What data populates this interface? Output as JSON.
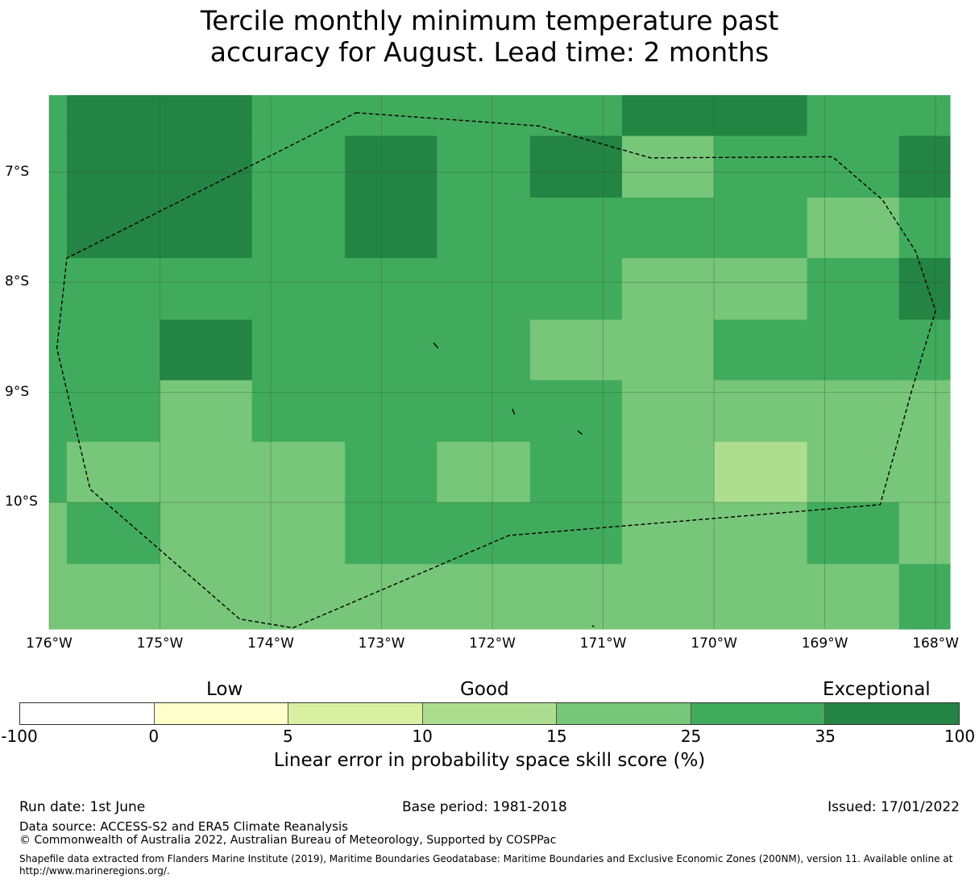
{
  "title": {
    "line1": "Tercile monthly minimum temperature past",
    "line2": "accuracy for August. Lead time: 2 months"
  },
  "map": {
    "lon_range": [
      -176,
      -167.87
    ],
    "lat_range": [
      -11.15,
      -6.3
    ],
    "lat_ticks": [
      {
        "value": -7,
        "label": "7°S"
      },
      {
        "value": -8,
        "label": "8°S"
      },
      {
        "value": -9,
        "label": "9°S"
      },
      {
        "value": -10,
        "label": "10°S"
      }
    ],
    "lon_ticks": [
      {
        "value": -176,
        "label": "176°W"
      },
      {
        "value": -175,
        "label": "175°W"
      },
      {
        "value": -174,
        "label": "174°W"
      },
      {
        "value": -173,
        "label": "173°W"
      },
      {
        "value": -172,
        "label": "172°W"
      },
      {
        "value": -171,
        "label": "171°W"
      },
      {
        "value": -170,
        "label": "170°W"
      },
      {
        "value": -169,
        "label": "169°W"
      },
      {
        "value": -168,
        "label": "168°W"
      }
    ],
    "grid_lon_edges": [
      -176,
      -175.84,
      -175.0,
      -174.17,
      -173.33,
      -172.5,
      -171.66,
      -170.83,
      -170.0,
      -169.16,
      -168.33,
      -167.87
    ],
    "grid_lat_edges": [
      -6.3,
      -6.67,
      -7.23,
      -7.78,
      -8.34,
      -8.89,
      -9.45,
      -10.0,
      -10.56,
      -11.15
    ],
    "cell_levels": [
      [
        5,
        6,
        6,
        5,
        5,
        5,
        5,
        6,
        6,
        5,
        5
      ],
      [
        5,
        6,
        6,
        5,
        6,
        5,
        6,
        4,
        5,
        5,
        6
      ],
      [
        5,
        6,
        6,
        5,
        6,
        5,
        5,
        5,
        5,
        4,
        5
      ],
      [
        5,
        5,
        5,
        5,
        5,
        5,
        5,
        4,
        4,
        5,
        6
      ],
      [
        5,
        5,
        6,
        5,
        5,
        5,
        4,
        4,
        5,
        5,
        5
      ],
      [
        5,
        5,
        4,
        5,
        5,
        5,
        5,
        4,
        4,
        4,
        4
      ],
      [
        5,
        4,
        4,
        4,
        5,
        4,
        5,
        4,
        3,
        4,
        4
      ],
      [
        4,
        5,
        4,
        4,
        5,
        5,
        5,
        4,
        4,
        5,
        4
      ],
      [
        4,
        4,
        4,
        4,
        4,
        4,
        4,
        4,
        4,
        4,
        5
      ]
    ],
    "eez_boundary": [
      [
        -173.23,
        -6.46
      ],
      [
        -171.58,
        -6.58
      ],
      [
        -170.57,
        -6.87
      ],
      [
        -168.93,
        -6.86
      ],
      [
        -168.48,
        -7.25
      ],
      [
        -168.18,
        -7.72
      ],
      [
        -168.0,
        -8.26
      ],
      [
        -168.22,
        -9.0
      ],
      [
        -168.5,
        -10.02
      ],
      [
        -171.85,
        -10.3
      ],
      [
        -173.8,
        -11.14
      ],
      [
        -174.28,
        -11.06
      ],
      [
        -175.63,
        -9.88
      ],
      [
        -175.93,
        -8.6
      ],
      [
        -175.84,
        -7.78
      ],
      [
        -173.23,
        -6.46
      ]
    ],
    "islands": [
      [
        [
          -172.53,
          -8.55
        ],
        [
          -172.49,
          -8.6
        ]
      ],
      [
        [
          -171.82,
          -9.15
        ],
        [
          -171.8,
          -9.2
        ]
      ],
      [
        [
          -171.23,
          -9.35
        ],
        [
          -171.19,
          -9.38
        ]
      ],
      [
        [
          -171.1,
          -11.12
        ],
        [
          -171.08,
          -11.13
        ]
      ]
    ]
  },
  "colorbar": {
    "colors": [
      "#ffffff",
      "#ffffcc",
      "#d9f0a3",
      "#addd8e",
      "#78c679",
      "#41ab5d",
      "#238443"
    ],
    "ticks": [
      "-100",
      "0",
      "5",
      "10",
      "15",
      "25",
      "35",
      "100"
    ],
    "categories": {
      "low": "Low",
      "good": "Good",
      "exceptional": "Exceptional"
    },
    "label": "Linear error in probability space skill score (%)"
  },
  "footer": {
    "run_date": "Run date: 1st June",
    "base_period": "Base period: 1981-2018",
    "issued": "Issued: 17/01/2022",
    "data_source": "Data source: ACCESS-S2 and ERA5 Climate Reanalysis",
    "copyright": "© Commonwealth of Australia 2022, Australian Bureau of Meteorology, Supported by COSPPac",
    "shapefile": "Shapefile data extracted from Flanders Marine Institute (2019), Maritime Boundaries Geodatabase: Maritime Boundaries and Exclusive Economic Zones (200NM), version 11. Available online at http://www.marineregions.org/."
  }
}
